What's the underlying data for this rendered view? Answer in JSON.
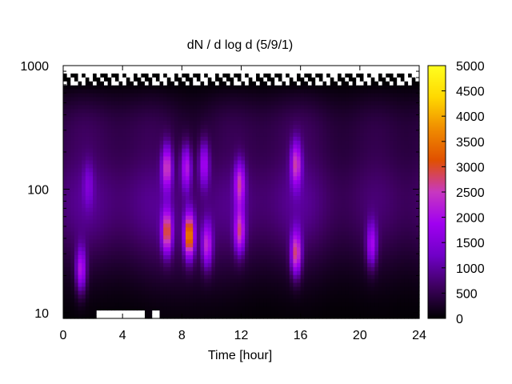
{
  "chart_data": {
    "type": "heatmap",
    "title": "dN / d log d (5/9/1)",
    "xlabel": "Time [hour]",
    "ylabel": "",
    "xlim": [
      0,
      24
    ],
    "ylim": [
      9,
      1000
    ],
    "yscale": "log",
    "x_ticks": [
      "0",
      "4",
      "8",
      "12",
      "16",
      "20",
      "24"
    ],
    "y_ticks": [
      "10",
      "100",
      "1000"
    ],
    "colorbar": {
      "range": [
        0,
        5000
      ],
      "ticks": [
        "0",
        "500",
        "1000",
        "1500",
        "2000",
        "2500",
        "3000",
        "3500",
        "4000",
        "4500",
        "5000"
      ],
      "colormap": [
        "#000000",
        "#3d005e",
        "#7000c8",
        "#a000f0",
        "#c838c0",
        "#e05000",
        "#f08c00",
        "#ffd800",
        "#ffff20"
      ]
    },
    "plumes": [
      {
        "t": 1.2,
        "d": 22,
        "value": 2800
      },
      {
        "t": 1.7,
        "d": 110,
        "value": 1600
      },
      {
        "t": 7.0,
        "d": 150,
        "value": 3000
      },
      {
        "t": 7.0,
        "d": 45,
        "value": 3400
      },
      {
        "t": 8.3,
        "d": 150,
        "value": 2700
      },
      {
        "t": 8.5,
        "d": 42,
        "value": 4200
      },
      {
        "t": 9.5,
        "d": 160,
        "value": 2500
      },
      {
        "t": 9.7,
        "d": 35,
        "value": 2800
      },
      {
        "t": 11.9,
        "d": 110,
        "value": 2800
      },
      {
        "t": 11.9,
        "d": 45,
        "value": 3000
      },
      {
        "t": 15.7,
        "d": 160,
        "value": 2900
      },
      {
        "t": 15.7,
        "d": 30,
        "value": 3300
      },
      {
        "t": 20.8,
        "d": 35,
        "value": 2500
      }
    ]
  }
}
